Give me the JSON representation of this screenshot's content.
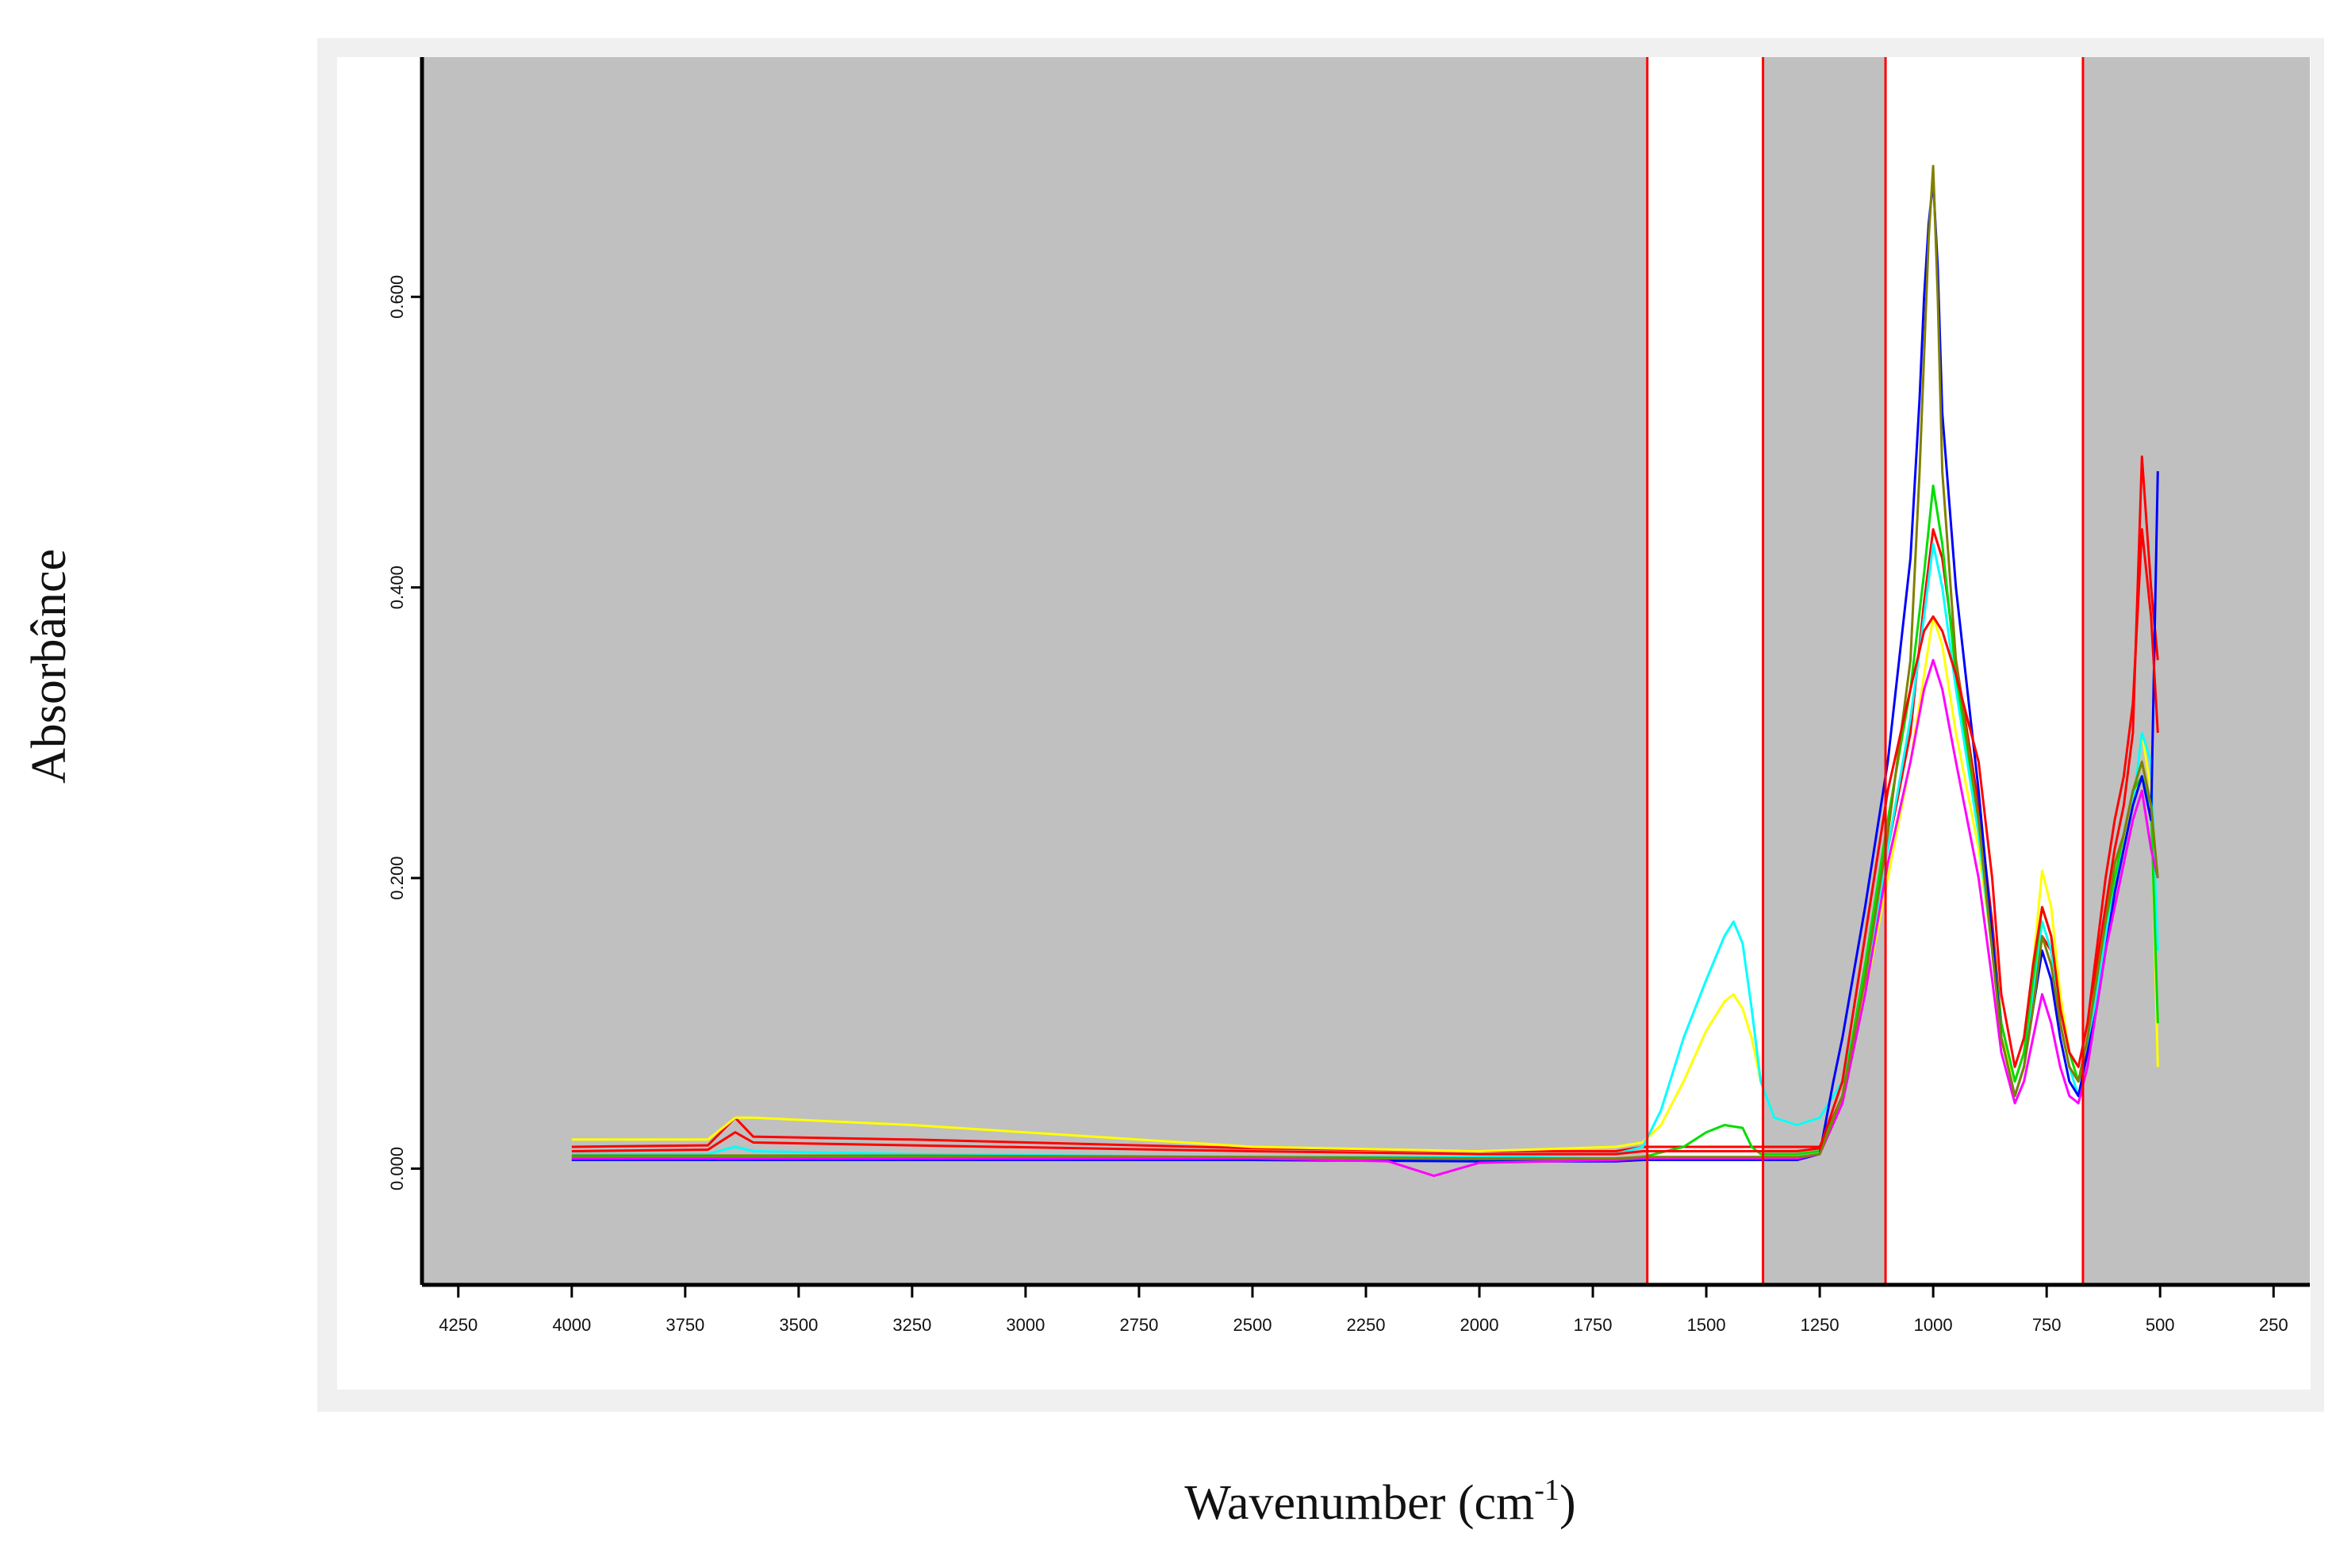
{
  "chart_data": {
    "type": "line",
    "title": "",
    "xlabel": "Wavenumber (cm-1)",
    "xlabel_main": "Wavenumber (cm",
    "xlabel_sup": "-1",
    "xlabel_end": ")",
    "ylabel": "Absorbânce",
    "xlim": [
      4330,
      170
    ],
    "ylim": [
      -0.08,
      0.765
    ],
    "x_reversed": true,
    "x_ticks": [
      4250,
      4000,
      3750,
      3500,
      3250,
      3000,
      2750,
      2500,
      2250,
      2000,
      1750,
      1500,
      1250,
      1000,
      750,
      500,
      250
    ],
    "x_tick_labels": [
      "4250",
      "4000",
      "3750",
      "3500",
      "3250",
      "3000",
      "2750",
      "2500",
      "2250",
      "2000",
      "1750",
      "1500",
      "1250",
      "1000",
      "750",
      "500",
      "250"
    ],
    "y_ticks": [
      0,
      0.2,
      0.4,
      0.6
    ],
    "y_tick_labels": [
      "0.000",
      "0.200",
      "0.400",
      "0.600"
    ],
    "grid": false,
    "legend": "none",
    "plot_background": "#c0c0c0",
    "selected_regions": [
      [
        1630,
        1375
      ],
      [
        1105,
        670
      ]
    ],
    "region_line_color": "#ff0000",
    "series": [
      {
        "color": "#ff0000",
        "x": [
          4000,
          3700,
          3640,
          3600,
          3250,
          2500,
          2000,
          1700,
          1640,
          1500,
          1400,
          1300,
          1250,
          1200,
          1150,
          1100,
          1050,
          1020,
          1000,
          980,
          950,
          900,
          870,
          850,
          820,
          800,
          780,
          760,
          740,
          720,
          700,
          680,
          660,
          640,
          620,
          600,
          580,
          560,
          540,
          520,
          505
        ],
        "y": [
          0.015,
          0.016,
          0.035,
          0.022,
          0.02,
          0.014,
          0.012,
          0.012,
          0.015,
          0.015,
          0.015,
          0.015,
          0.015,
          0.05,
          0.14,
          0.22,
          0.3,
          0.39,
          0.44,
          0.42,
          0.35,
          0.25,
          0.17,
          0.1,
          0.06,
          0.08,
          0.12,
          0.16,
          0.15,
          0.1,
          0.07,
          0.06,
          0.08,
          0.14,
          0.18,
          0.22,
          0.25,
          0.3,
          0.49,
          0.4,
          0.35
        ]
      },
      {
        "color": "#ffff00",
        "x": [
          4000,
          3700,
          3640,
          3600,
          3250,
          2500,
          2000,
          1700,
          1640,
          1600,
          1550,
          1500,
          1460,
          1440,
          1420,
          1400,
          1380,
          1350,
          1300,
          1250,
          1200,
          1150,
          1100,
          1050,
          1020,
          1000,
          980,
          950,
          900,
          870,
          850,
          820,
          800,
          780,
          760,
          740,
          720,
          700,
          680,
          660,
          640,
          620,
          600,
          580,
          560,
          540,
          520,
          505
        ],
        "y": [
          0.02,
          0.02,
          0.035,
          0.035,
          0.03,
          0.015,
          0.012,
          0.015,
          0.018,
          0.03,
          0.06,
          0.095,
          0.115,
          0.12,
          0.11,
          0.09,
          0.06,
          0.035,
          0.03,
          0.035,
          0.06,
          0.12,
          0.2,
          0.28,
          0.34,
          0.38,
          0.36,
          0.3,
          0.22,
          0.15,
          0.09,
          0.06,
          0.08,
          0.14,
          0.205,
          0.18,
          0.12,
          0.08,
          0.06,
          0.09,
          0.13,
          0.17,
          0.2,
          0.22,
          0.25,
          0.3,
          0.26,
          0.07
        ]
      },
      {
        "color": "#00ffff",
        "x": [
          4000,
          3700,
          3640,
          3600,
          3250,
          2500,
          2000,
          1700,
          1640,
          1600,
          1550,
          1500,
          1460,
          1440,
          1420,
          1400,
          1380,
          1350,
          1300,
          1250,
          1200,
          1150,
          1100,
          1050,
          1020,
          1000,
          980,
          950,
          900,
          870,
          850,
          820,
          800,
          780,
          760,
          740,
          720,
          700,
          680,
          660,
          640,
          620,
          600,
          580,
          560,
          540,
          520,
          505
        ],
        "y": [
          0.01,
          0.01,
          0.015,
          0.012,
          0.01,
          0.008,
          0.008,
          0.01,
          0.015,
          0.04,
          0.09,
          0.13,
          0.16,
          0.17,
          0.155,
          0.11,
          0.06,
          0.035,
          0.03,
          0.035,
          0.06,
          0.13,
          0.22,
          0.31,
          0.38,
          0.43,
          0.4,
          0.33,
          0.23,
          0.15,
          0.09,
          0.05,
          0.07,
          0.12,
          0.17,
          0.15,
          0.1,
          0.07,
          0.05,
          0.08,
          0.12,
          0.16,
          0.2,
          0.22,
          0.25,
          0.3,
          0.28,
          0.15
        ]
      },
      {
        "color": "#00dd00",
        "x": [
          4000,
          3700,
          3250,
          2500,
          2000,
          1700,
          1640,
          1550,
          1500,
          1460,
          1420,
          1400,
          1380,
          1300,
          1250,
          1200,
          1150,
          1100,
          1050,
          1020,
          1000,
          980,
          950,
          900,
          870,
          850,
          820,
          800,
          780,
          760,
          740,
          720,
          700,
          680,
          660,
          640,
          620,
          600,
          580,
          560,
          540,
          520,
          505
        ],
        "y": [
          0.008,
          0.008,
          0.008,
          0.007,
          0.006,
          0.006,
          0.008,
          0.015,
          0.025,
          0.03,
          0.028,
          0.015,
          0.01,
          0.01,
          0.012,
          0.05,
          0.14,
          0.24,
          0.33,
          0.41,
          0.47,
          0.43,
          0.34,
          0.24,
          0.16,
          0.1,
          0.06,
          0.08,
          0.13,
          0.18,
          0.16,
          0.11,
          0.08,
          0.06,
          0.09,
          0.13,
          0.17,
          0.2,
          0.23,
          0.26,
          0.27,
          0.25,
          0.1
        ]
      },
      {
        "color": "#0000ff",
        "x": [
          4000,
          3700,
          3250,
          2500,
          2000,
          1700,
          1640,
          1500,
          1400,
          1300,
          1250,
          1220,
          1200,
          1150,
          1100,
          1050,
          1030,
          1020,
          1010,
          1000,
          990,
          980,
          950,
          900,
          870,
          850,
          820,
          800,
          780,
          760,
          740,
          720,
          700,
          680,
          660,
          640,
          620,
          600,
          580,
          560,
          540,
          520,
          505
        ],
        "y": [
          0.006,
          0.006,
          0.006,
          0.006,
          0.005,
          0.005,
          0.006,
          0.006,
          0.006,
          0.006,
          0.01,
          0.06,
          0.09,
          0.18,
          0.28,
          0.42,
          0.53,
          0.6,
          0.65,
          0.68,
          0.62,
          0.52,
          0.4,
          0.26,
          0.16,
          0.09,
          0.05,
          0.07,
          0.11,
          0.15,
          0.13,
          0.09,
          0.06,
          0.05,
          0.08,
          0.11,
          0.15,
          0.19,
          0.22,
          0.25,
          0.27,
          0.24,
          0.48
        ]
      },
      {
        "color": "#ff00ff",
        "x": [
          4000,
          3700,
          3250,
          2500,
          2200,
          2100,
          2000,
          1700,
          1640,
          1500,
          1400,
          1300,
          1250,
          1200,
          1150,
          1100,
          1050,
          1020,
          1000,
          980,
          950,
          900,
          870,
          850,
          820,
          800,
          780,
          760,
          740,
          720,
          700,
          680,
          660,
          640,
          620,
          600,
          580,
          560,
          540,
          520,
          505
        ],
        "y": [
          0.007,
          0.007,
          0.007,
          0.007,
          0.005,
          -0.005,
          0.004,
          0.006,
          0.007,
          0.007,
          0.007,
          0.007,
          0.01,
          0.045,
          0.12,
          0.21,
          0.28,
          0.33,
          0.35,
          0.33,
          0.28,
          0.2,
          0.13,
          0.08,
          0.045,
          0.06,
          0.09,
          0.12,
          0.1,
          0.07,
          0.05,
          0.045,
          0.07,
          0.11,
          0.15,
          0.18,
          0.21,
          0.24,
          0.26,
          0.22,
          0.2
        ]
      },
      {
        "color": "#808000",
        "x": [
          4000,
          3700,
          3250,
          2500,
          2000,
          1700,
          1640,
          1500,
          1400,
          1300,
          1250,
          1200,
          1150,
          1100,
          1050,
          1030,
          1010,
          1000,
          990,
          980,
          950,
          900,
          870,
          850,
          820,
          800,
          780,
          760,
          740,
          720,
          700,
          680,
          660,
          640,
          620,
          600,
          580,
          560,
          540,
          520,
          505
        ],
        "y": [
          0.009,
          0.009,
          0.009,
          0.008,
          0.007,
          0.007,
          0.008,
          0.008,
          0.008,
          0.008,
          0.01,
          0.05,
          0.13,
          0.23,
          0.35,
          0.48,
          0.64,
          0.69,
          0.6,
          0.48,
          0.35,
          0.24,
          0.15,
          0.09,
          0.05,
          0.07,
          0.11,
          0.16,
          0.14,
          0.1,
          0.07,
          0.06,
          0.09,
          0.13,
          0.17,
          0.21,
          0.23,
          0.26,
          0.28,
          0.25,
          0.2
        ]
      },
      {
        "color": "#ff0000",
        "x": [
          4000,
          3700,
          3640,
          3600,
          3250,
          2500,
          2000,
          1700,
          1640,
          1500,
          1400,
          1300,
          1250,
          1200,
          1150,
          1100,
          1050,
          1020,
          1000,
          980,
          950,
          900,
          870,
          850,
          820,
          800,
          780,
          760,
          740,
          720,
          700,
          680,
          660,
          640,
          620,
          600,
          580,
          560,
          540,
          520,
          505
        ],
        "y": [
          0.012,
          0.013,
          0.025,
          0.018,
          0.016,
          0.012,
          0.01,
          0.01,
          0.012,
          0.012,
          0.012,
          0.012,
          0.014,
          0.06,
          0.16,
          0.26,
          0.33,
          0.37,
          0.38,
          0.37,
          0.34,
          0.28,
          0.2,
          0.12,
          0.07,
          0.09,
          0.14,
          0.18,
          0.16,
          0.11,
          0.08,
          0.07,
          0.1,
          0.15,
          0.2,
          0.24,
          0.27,
          0.32,
          0.44,
          0.38,
          0.3
        ]
      }
    ]
  }
}
